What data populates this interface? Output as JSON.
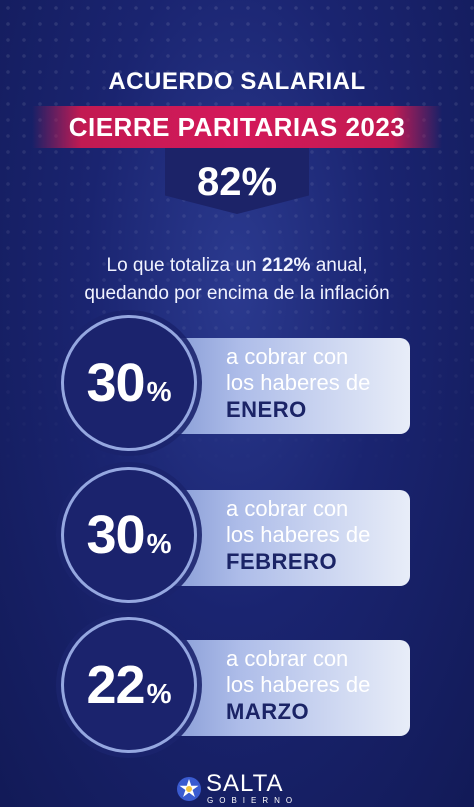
{
  "header": {
    "title": "ACUERDO SALARIAL",
    "banner": "CIERRE PARITARIAS 2023",
    "total_increase": "82%"
  },
  "summary": {
    "line1_prefix": "Lo que totaliza un ",
    "line1_bold": "212%",
    "line1_suffix": " anual,",
    "line2": "quedando por encima de la inflación"
  },
  "installments": [
    {
      "percent": "30",
      "symbol": "%",
      "line1": "a cobrar con",
      "line2": "los haberes de",
      "month": "ENERO"
    },
    {
      "percent": "30",
      "symbol": "%",
      "line1": "a cobrar con",
      "line2": "los haberes de",
      "month": "FEBRERO"
    },
    {
      "percent": "22",
      "symbol": "%",
      "line1": "a cobrar con",
      "line2": "los haberes de",
      "month": "MARZO"
    }
  ],
  "footer": {
    "logo_text": "SALTA",
    "logo_subtext": "GOBIERNO",
    "logo_icon": "sun-star-icon"
  },
  "colors": {
    "background": "#1a2470",
    "banner_red": "#d4195a",
    "card_light": "#e8edf8",
    "month_text": "#1b2466"
  }
}
